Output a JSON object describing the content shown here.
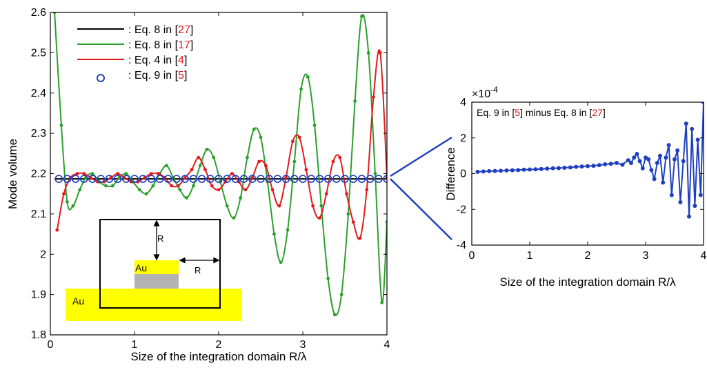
{
  "chart_data": [
    {
      "type": "line",
      "xlabel": "Size of the integration domain R/λ",
      "ylabel": "Mode volume",
      "xlim": [
        0,
        4
      ],
      "ylim": [
        1.8,
        2.6
      ],
      "xticks": [
        "0",
        "1",
        "2",
        "3",
        "4"
      ],
      "yticks": [
        "1.8",
        "1.9",
        "2",
        "2.1",
        "2.2",
        "2.3",
        "2.4",
        "2.5",
        "2.6"
      ],
      "grid": false,
      "legend_position": "top-left",
      "legend": [
        {
          "prefix": ": Eq. 8 in [",
          "ref": "27",
          "suffix": "]",
          "color": "#000000",
          "marker": "line"
        },
        {
          "prefix": ": Eq. 8 in [",
          "ref": "17",
          "suffix": "]",
          "color": "#2ca02c",
          "marker": "line"
        },
        {
          "prefix": ": Eq. 4 in [",
          "ref": "4",
          "suffix": "]",
          "color": "#e31a1c",
          "marker": "line"
        },
        {
          "prefix": ": Eq. 9 in [",
          "ref": "5",
          "suffix": "]",
          "color": "#1f3fbf",
          "marker": "circle"
        }
      ],
      "series": [
        {
          "color": "#000000",
          "x": [
            0.05,
            4.0
          ],
          "y": [
            2.187,
            2.187
          ]
        },
        {
          "color": "#2ca02c",
          "x": [
            0.05,
            0.13,
            0.2,
            0.27,
            0.35,
            0.42,
            0.5,
            0.58,
            0.66,
            0.74,
            0.82,
            0.9,
            0.98,
            1.06,
            1.14,
            1.22,
            1.3,
            1.38,
            1.46,
            1.54,
            1.62,
            1.7,
            1.78,
            1.86,
            1.94,
            2.02,
            2.1,
            2.18,
            2.26,
            2.34,
            2.42,
            2.5,
            2.58,
            2.66,
            2.74,
            2.82,
            2.9,
            2.98,
            3.06,
            3.14,
            3.22,
            3.3,
            3.38,
            3.46,
            3.54,
            3.62,
            3.7,
            3.78,
            3.86,
            3.94,
            4.0
          ],
          "y": [
            2.6,
            2.32,
            2.13,
            2.12,
            2.16,
            2.19,
            2.2,
            2.18,
            2.17,
            2.17,
            2.19,
            2.2,
            2.18,
            2.16,
            2.15,
            2.17,
            2.2,
            2.22,
            2.19,
            2.16,
            2.14,
            2.17,
            2.22,
            2.26,
            2.24,
            2.18,
            2.12,
            2.09,
            2.14,
            2.24,
            2.31,
            2.29,
            2.18,
            2.05,
            1.98,
            2.06,
            2.23,
            2.41,
            2.44,
            2.32,
            2.12,
            1.94,
            1.85,
            1.9,
            2.1,
            2.38,
            2.59,
            2.5,
            2.2,
            1.88,
            2.08
          ]
        },
        {
          "color": "#e31a1c",
          "x": [
            0.08,
            0.16,
            0.24,
            0.32,
            0.4,
            0.48,
            0.56,
            0.64,
            0.72,
            0.8,
            0.88,
            0.96,
            1.04,
            1.12,
            1.2,
            1.28,
            1.36,
            1.44,
            1.52,
            1.6,
            1.68,
            1.76,
            1.84,
            1.92,
            2.0,
            2.08,
            2.16,
            2.24,
            2.32,
            2.4,
            2.48,
            2.56,
            2.64,
            2.72,
            2.8,
            2.88,
            2.96,
            3.04,
            3.12,
            3.2,
            3.28,
            3.36,
            3.44,
            3.52,
            3.6,
            3.68,
            3.76,
            3.84,
            3.92,
            4.0
          ],
          "y": [
            2.06,
            2.15,
            2.19,
            2.2,
            2.2,
            2.19,
            2.18,
            2.18,
            2.19,
            2.2,
            2.19,
            2.18,
            2.18,
            2.19,
            2.2,
            2.2,
            2.19,
            2.17,
            2.17,
            2.19,
            2.21,
            2.24,
            2.21,
            2.17,
            2.16,
            2.18,
            2.2,
            2.18,
            2.16,
            2.19,
            2.23,
            2.22,
            2.16,
            2.12,
            2.19,
            2.28,
            2.29,
            2.21,
            2.12,
            2.09,
            2.15,
            2.23,
            2.24,
            2.15,
            2.08,
            2.04,
            2.16,
            2.39,
            2.5,
            2.19
          ]
        },
        {
          "color": "#1f3fbf",
          "marker": "circle",
          "x": [
            0.1,
            0.2,
            0.3,
            0.4,
            0.5,
            0.6,
            0.7,
            0.8,
            0.9,
            1.0,
            1.1,
            1.2,
            1.3,
            1.4,
            1.5,
            1.6,
            1.7,
            1.8,
            1.9,
            2.0,
            2.1,
            2.2,
            2.3,
            2.4,
            2.5,
            2.6,
            2.7,
            2.8,
            2.9,
            3.0,
            3.1,
            3.2,
            3.3,
            3.4,
            3.5,
            3.6,
            3.7,
            3.8,
            3.9,
            4.0
          ],
          "y": [
            2.187,
            2.187,
            2.187,
            2.187,
            2.187,
            2.187,
            2.187,
            2.187,
            2.187,
            2.187,
            2.187,
            2.187,
            2.187,
            2.187,
            2.187,
            2.187,
            2.187,
            2.187,
            2.187,
            2.187,
            2.187,
            2.187,
            2.187,
            2.187,
            2.187,
            2.187,
            2.187,
            2.187,
            2.187,
            2.187,
            2.187,
            2.187,
            2.187,
            2.187,
            2.187,
            2.187,
            2.187,
            2.187,
            2.187,
            2.187
          ]
        }
      ],
      "inset": {
        "labels": [
          "R",
          "R",
          "Au",
          "Au"
        ],
        "colors": {
          "gold": "#ffff00",
          "substrate": "#b3b3b3",
          "frame": "#000000"
        }
      }
    },
    {
      "type": "line",
      "annotation": {
        "prefix": "Eq. 9 in [",
        "ref1": "5",
        "middle": "] minus Eq. 8 in [",
        "ref2": "27",
        "suffix": "]"
      },
      "xlabel": "Size of the integration domain R/λ",
      "ylabel": "Difference",
      "scale_label": "×10",
      "scale_exp": "-4",
      "xlim": [
        0,
        4
      ],
      "ylim": [
        -4,
        4
      ],
      "xticks": [
        "0",
        "1",
        "2",
        "3",
        "4"
      ],
      "yticks": [
        "-4",
        "-2",
        "0",
        "2",
        "4"
      ],
      "series": [
        {
          "color": "#1f3fbf",
          "x": [
            0.1,
            0.2,
            0.3,
            0.4,
            0.5,
            0.6,
            0.7,
            0.8,
            0.9,
            1.0,
            1.1,
            1.2,
            1.3,
            1.4,
            1.5,
            1.6,
            1.7,
            1.8,
            1.9,
            2.0,
            2.1,
            2.2,
            2.3,
            2.4,
            2.5,
            2.6,
            2.7,
            2.75,
            2.8,
            2.85,
            2.9,
            2.95,
            3.0,
            3.05,
            3.1,
            3.15,
            3.2,
            3.25,
            3.3,
            3.35,
            3.4,
            3.45,
            3.5,
            3.55,
            3.6,
            3.65,
            3.7,
            3.75,
            3.8,
            3.85,
            3.9,
            3.95,
            4.0
          ],
          "y": [
            0.1,
            0.12,
            0.14,
            0.15,
            0.16,
            0.18,
            0.19,
            0.2,
            0.22,
            0.23,
            0.24,
            0.26,
            0.28,
            0.3,
            0.31,
            0.33,
            0.35,
            0.38,
            0.4,
            0.42,
            0.44,
            0.48,
            0.52,
            0.55,
            0.6,
            0.5,
            0.75,
            0.6,
            0.9,
            1.1,
            0.7,
            0.3,
            0.9,
            0.8,
            0.2,
            -0.3,
            0.6,
            1.0,
            -0.5,
            0.9,
            1.6,
            -1.2,
            0.8,
            1.3,
            -1.6,
            0.7,
            2.8,
            -2.4,
            2.5,
            -1.8,
            1.9,
            -1.2,
            4.0
          ]
        }
      ]
    }
  ]
}
